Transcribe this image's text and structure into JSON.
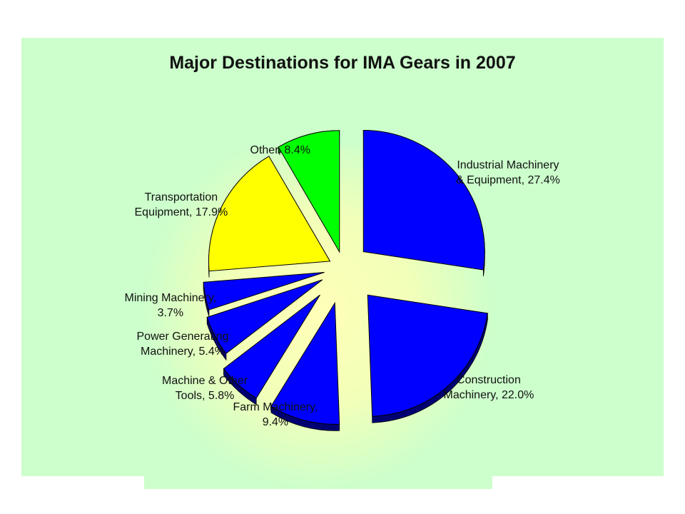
{
  "chart_data": {
    "type": "pie",
    "title": "Major Destinations for IMA Gears in 2007",
    "slices": [
      {
        "label": "Industrial Machinery\n& Equipment, 27.4%",
        "name": "Industrial Machinery & Equipment",
        "value": 27.4,
        "color": "#0000ff"
      },
      {
        "label": "Construction\nMachinery, 22.0%",
        "name": "Construction Machinery",
        "value": 22.0,
        "color": "#0000ff"
      },
      {
        "label": "Farm Machinery,\n9.4%",
        "name": "Farm Machinery",
        "value": 9.4,
        "color": "#0000ff"
      },
      {
        "label": "Machine & Other\nTools, 5.8%",
        "name": "Machine & Other Tools",
        "value": 5.8,
        "color": "#0000ff"
      },
      {
        "label": "Power Generating\nMachinery, 5.4%",
        "name": "Power Generating Machinery",
        "value": 5.4,
        "color": "#0000ff"
      },
      {
        "label": "Mining Machinery,\n3.7%",
        "name": "Mining Machinery",
        "value": 3.7,
        "color": "#0000ff"
      },
      {
        "label": "Transportation\nEquipment, 17.9%",
        "name": "Transportation Equipment",
        "value": 17.9,
        "color": "#ffff00"
      },
      {
        "label": "Other, 8.4%",
        "name": "Other",
        "value": 8.4,
        "color": "#00ff00"
      }
    ],
    "start_angle": "12 o'clock",
    "direction": "clockwise",
    "exploded": true,
    "style": "3d",
    "legend": "none"
  }
}
